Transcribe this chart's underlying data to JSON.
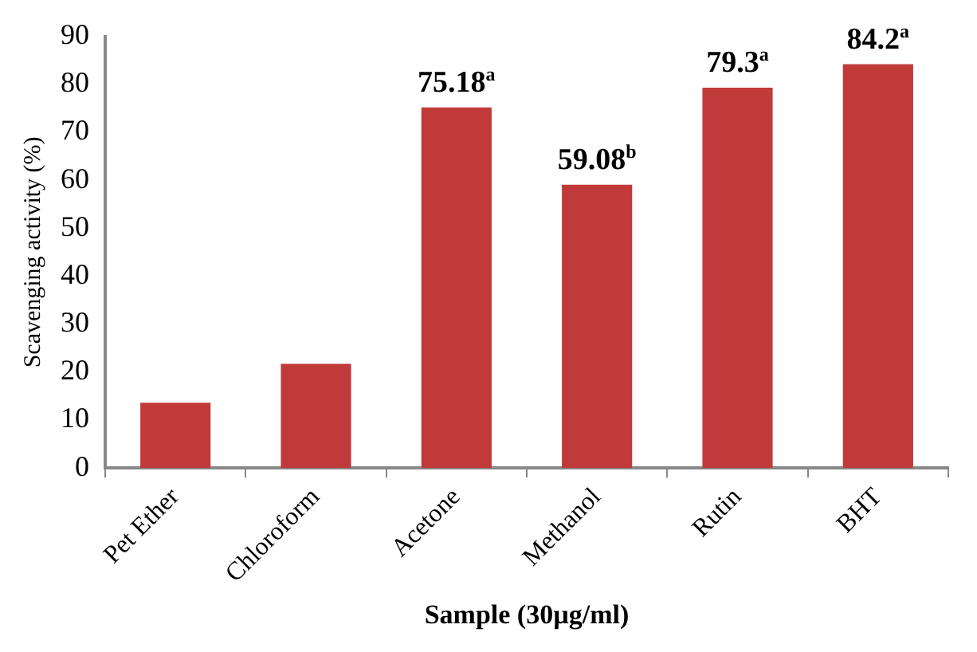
{
  "chart_data": {
    "type": "bar",
    "xlabel": "Sample (30µg/ml)",
    "ylabel": "Scavenging activity (%)",
    "categories": [
      "Pet Ether",
      "Chloroform",
      "Acetone",
      "Methanol",
      "Rutin",
      "BHT"
    ],
    "values": [
      13.6,
      21.7,
      75.18,
      59.08,
      79.3,
      84.2
    ],
    "value_labels": [
      null,
      null,
      "75.18$^{a}$",
      "59.08$^{b}$",
      "79.3$^{a}$",
      "84.2$^{a}$"
    ],
    "color": "#c13a3a",
    "ylim": [
      0,
      90
    ],
    "yticks": [
      0,
      10,
      20,
      30,
      40,
      50,
      60,
      70,
      80,
      90
    ],
    "grid": false,
    "legend": false
  }
}
